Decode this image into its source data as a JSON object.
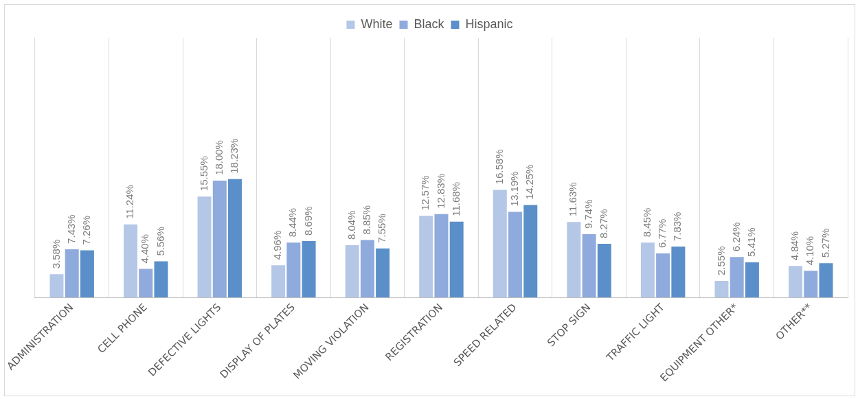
{
  "chart_data": {
    "type": "bar",
    "categories": [
      "ADMINISTRATION",
      "CELL PHONE",
      "DEFECTIVE LIGHTS",
      "DISPLAY OF PLATES",
      "MOVING VIOLATION",
      "REGISTRATION",
      "SPEED RELATED",
      "STOP SIGN",
      "TRAFFIC LIGHT",
      "EQUIPMENT OTHER*",
      "OTHER**"
    ],
    "series": [
      {
        "name": "White",
        "color": "#b4c7e7",
        "values": [
          3.58,
          11.24,
          15.55,
          4.96,
          8.04,
          12.57,
          16.58,
          11.63,
          8.45,
          2.55,
          4.84
        ],
        "value_labels": [
          "3.58%",
          "11.24%",
          "15.55%",
          "4.96%",
          "8.04%",
          "12.57%",
          "16.58%",
          "11.63%",
          "8.45%",
          "2.55%",
          "4.84%"
        ]
      },
      {
        "name": "Black",
        "color": "#8faadc",
        "values": [
          7.43,
          4.4,
          18.0,
          8.44,
          8.85,
          12.83,
          13.19,
          9.74,
          6.77,
          6.24,
          4.1
        ],
        "value_labels": [
          "7.43%",
          "4.40%",
          "18.00%",
          "8.44%",
          "8.85%",
          "12.83%",
          "13.19%",
          "9.74%",
          "6.77%",
          "6.24%",
          "4.10%"
        ]
      },
      {
        "name": "Hispanic",
        "color": "#5b8fc9",
        "values": [
          7.26,
          5.56,
          18.23,
          8.69,
          7.55,
          11.68,
          14.25,
          8.27,
          7.83,
          5.41,
          5.27
        ],
        "value_labels": [
          "7.26%",
          "5.56%",
          "18.23%",
          "8.69%",
          "7.55%",
          "11.68%",
          "14.25%",
          "8.27%",
          "7.83%",
          "5.41%",
          "5.27%"
        ]
      }
    ],
    "legend": "top",
    "grid": "x"
  }
}
